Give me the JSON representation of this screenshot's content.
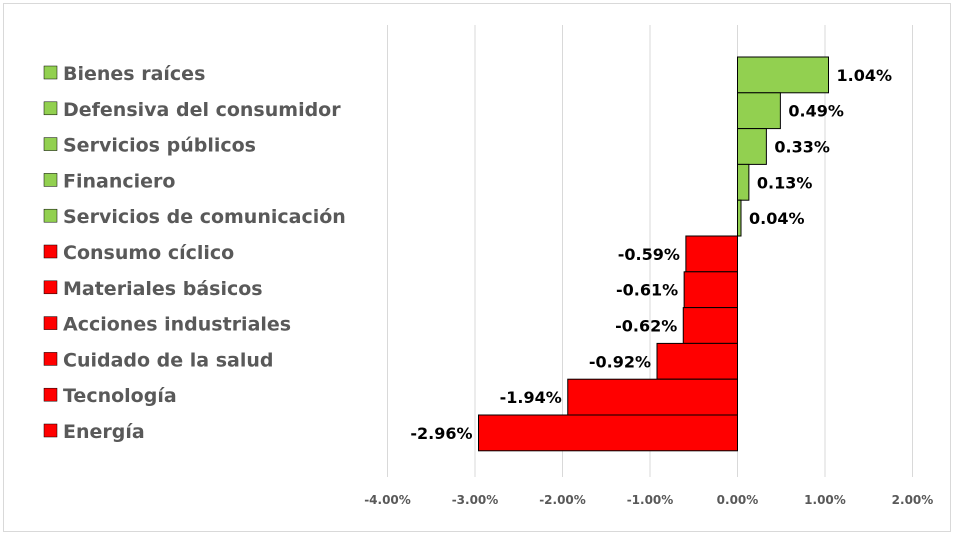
{
  "chart_data": {
    "type": "bar",
    "orientation": "horizontal",
    "categories": [
      "Bienes raíces",
      "Defensiva del consumidor",
      "Servicios públicos",
      "Financiero",
      "Servicios de comunicación",
      "Consumo cíclico",
      "Materiales básicos",
      "Acciones industriales",
      "Cuidado de la salud",
      "Tecnología",
      "Energía"
    ],
    "values": [
      1.04,
      0.49,
      0.33,
      0.13,
      0.04,
      -0.59,
      -0.61,
      -0.62,
      -0.92,
      -1.94,
      -2.96
    ],
    "value_labels": [
      "1.04%",
      "0.49%",
      "0.33%",
      "0.13%",
      "0.04%",
      "-0.59%",
      "-0.61%",
      "-0.62%",
      "-0.92%",
      "-1.94%",
      "-2.96%"
    ],
    "xlim": [
      -4,
      2
    ],
    "x_ticks": [
      -4,
      -3,
      -2,
      -1,
      0,
      1,
      2
    ],
    "x_tick_labels": [
      "-4.00%",
      "-3.00%",
      "-2.00%",
      "-1.00%",
      "0.00%",
      "1.00%",
      "2.00%"
    ],
    "title": "",
    "xlabel": "",
    "ylabel": "",
    "grid": "vertical",
    "legend": "left",
    "colors": {
      "positive": "#92d050",
      "negative": "#ff0000",
      "grid": "#d9d9d9",
      "bar_edge": "#000000"
    }
  }
}
